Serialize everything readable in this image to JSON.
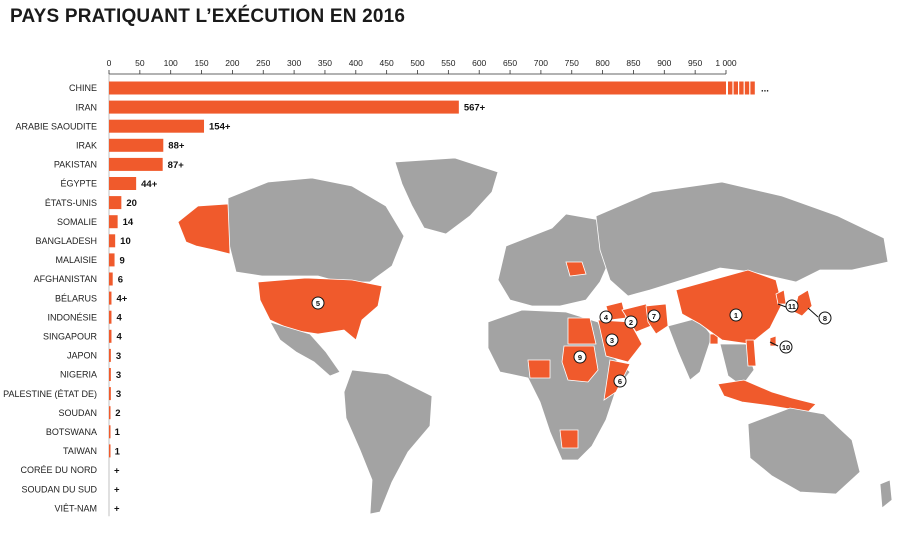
{
  "colors": {
    "accent": "#f05a2c",
    "land": "#a3a3a3",
    "text": "#222222"
  },
  "chart_data": {
    "type": "bar",
    "title": "PAYS PRATIQUANT L’EXÉCUTION EN 2016",
    "xlim": [
      0,
      1000
    ],
    "ticks": [
      "0",
      "50",
      "100",
      "150",
      "200",
      "250",
      "300",
      "350",
      "400",
      "450",
      "500",
      "550",
      "600",
      "650",
      "700",
      "750",
      "800",
      "850",
      "900",
      "950",
      "1 000"
    ],
    "categories": [
      "CHINE",
      "IRAN",
      "ARABIE SAOUDITE",
      "IRAK",
      "PAKISTAN",
      "ÉGYPTE",
      "ÉTATS-UNIS",
      "SOMALIE",
      "BANGLADESH",
      "MALAISIE",
      "AFGHANISTAN",
      "BÉLARUS",
      "INDONÉSIE",
      "SINGAPOUR",
      "JAPON",
      "NIGERIA",
      "PALESTINE (ÉTAT DE)",
      "SOUDAN",
      "BOTSWANA",
      "TAIWAN",
      "CORÉE DU NORD",
      "SOUDAN DU SUD",
      "VIÊT-NAM"
    ],
    "values": [
      1000,
      567,
      154,
      88,
      87,
      44,
      20,
      14,
      10,
      9,
      6,
      4,
      4,
      4,
      3,
      3,
      3,
      2,
      1,
      1,
      0,
      0,
      0
    ],
    "labels": [
      "...",
      "567+",
      "154+",
      "88+",
      "87+",
      "44+",
      "20",
      "14",
      "10",
      "9",
      "6",
      "4+",
      "4",
      "4",
      "3",
      "3",
      "3",
      "2",
      "1",
      "1",
      "+",
      "+",
      "+"
    ]
  },
  "map": {
    "markers": [
      "1",
      "2",
      "3",
      "4",
      "5",
      "6",
      "7",
      "8",
      "9",
      "10",
      "11"
    ]
  }
}
